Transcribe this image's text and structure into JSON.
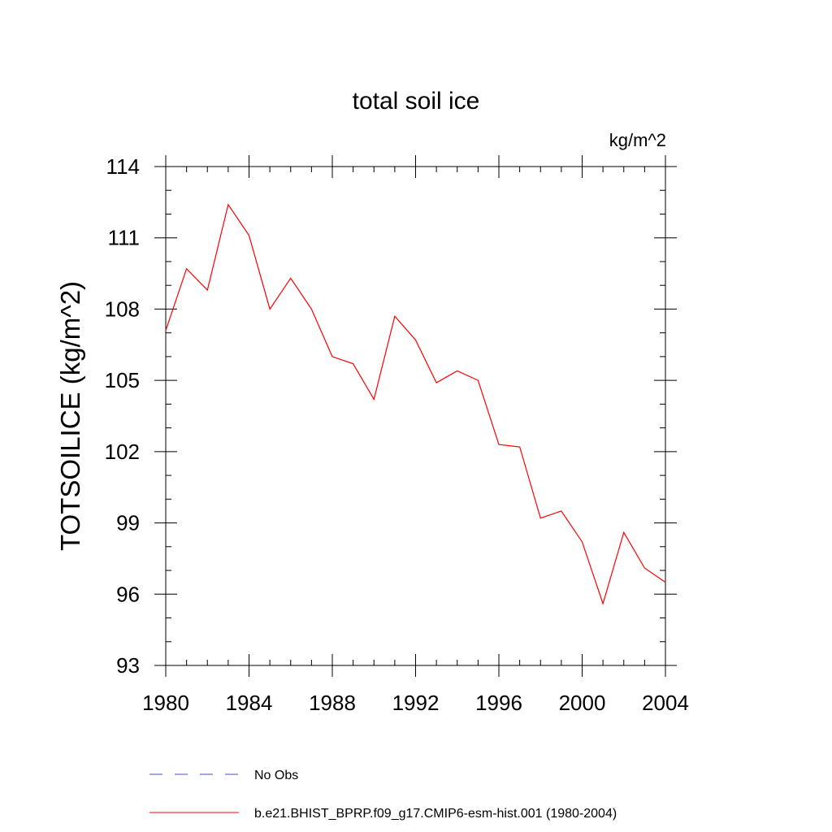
{
  "chart_data": {
    "type": "line",
    "title": "total soil ice",
    "units_label": "kg/m^2",
    "ylabel": "TOTSOILICE  (kg/m^2)",
    "xlabel": "",
    "xlim": [
      1980,
      2004
    ],
    "ylim": [
      93,
      114
    ],
    "x_ticks": [
      1980,
      1984,
      1988,
      1992,
      1996,
      2000,
      2004
    ],
    "y_ticks": [
      93,
      96,
      99,
      102,
      105,
      108,
      111,
      114
    ],
    "x_minor_step": 1,
    "y_minor_step": 1,
    "grid": false,
    "legend_position": "bottom",
    "series": [
      {
        "name": "No Obs",
        "color": "#4a4ac8",
        "dash": "dashed",
        "x": [],
        "values": []
      },
      {
        "name": "b.e21.BHIST_BPRP.f09_g17.CMIP6-esm-hist.001 (1980-2004)",
        "color": "#ff0000",
        "dash": "solid",
        "x": [
          1980,
          1981,
          1982,
          1983,
          1984,
          1985,
          1986,
          1987,
          1988,
          1989,
          1990,
          1991,
          1992,
          1993,
          1994,
          1995,
          1996,
          1997,
          1998,
          1999,
          2000,
          2001,
          2002,
          2003,
          2004
        ],
        "values": [
          107.1,
          109.7,
          108.8,
          112.4,
          111.1,
          108.0,
          109.3,
          108.0,
          106.0,
          105.7,
          104.2,
          107.7,
          106.7,
          104.9,
          105.4,
          105.0,
          102.3,
          102.2,
          99.2,
          99.5,
          98.2,
          95.6,
          98.6,
          97.1,
          96.5
        ]
      }
    ]
  }
}
